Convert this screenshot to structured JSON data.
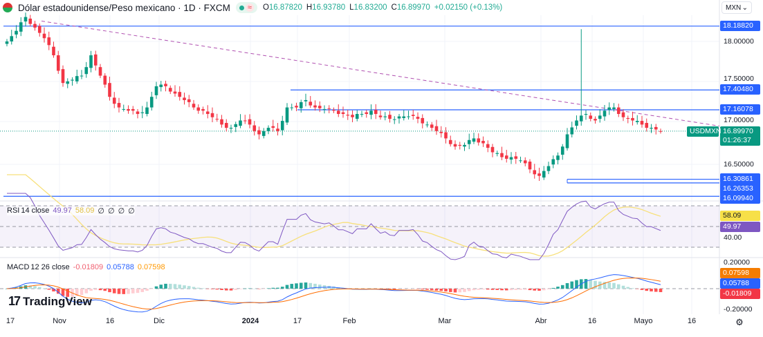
{
  "header": {
    "title": "Dólar estadounidense/Peso mexicano · 1D · FXCM",
    "open_label": "O",
    "open": "16.87820",
    "high_label": "H",
    "high": "16.93780",
    "low_label": "L",
    "low": "16.83200",
    "close_label": "C",
    "close": "16.89970",
    "change": "+0.02150 (+0.13%)",
    "market_status_icon": "market-open-dot",
    "wave_icon": "≈"
  },
  "currency_selector": {
    "value": "MXN",
    "chevron": "⌄"
  },
  "price_axis": {
    "ticks": [
      "18.00000",
      "17.50000",
      "17.00000",
      "16.50000"
    ],
    "tick_values": [
      18.0,
      17.5,
      17.0,
      16.5
    ],
    "levels": [
      {
        "label": "18.18820",
        "value": 18.1882
      },
      {
        "label": "17.40480",
        "value": 17.4048
      },
      {
        "label": "17.16078",
        "value": 17.16078
      },
      {
        "label": "16.30861",
        "value": 16.30861
      },
      {
        "label": "16.26353",
        "value": 16.26353
      },
      {
        "label": "16.09940",
        "value": 16.0994
      }
    ],
    "symbol_tag": "USDMXN",
    "last_price": "16.89970",
    "countdown": "01:26:37",
    "level_color": "#2962ff",
    "up_color": "#089981",
    "down_color": "#f23645"
  },
  "chart_data": {
    "type": "candlestick",
    "closes": [
      18.0,
      18.13,
      18.3,
      18.17,
      18.04,
      17.83,
      17.49,
      17.53,
      17.58,
      17.83,
      17.58,
      17.32,
      17.19,
      17.15,
      17.11,
      17.19,
      17.45,
      17.45,
      17.36,
      17.28,
      17.19,
      17.15,
      17.07,
      16.98,
      16.94,
      17.03,
      16.98,
      16.86,
      16.94,
      16.9,
      17.19,
      17.19,
      17.28,
      17.19,
      17.17,
      17.15,
      17.11,
      17.07,
      17.11,
      17.15,
      17.07,
      17.05,
      17.08,
      17.08,
      17.05,
      16.98,
      16.9,
      16.81,
      16.71,
      16.73,
      16.81,
      16.75,
      16.64,
      16.58,
      16.58,
      16.54,
      16.43,
      16.35,
      16.47,
      16.6,
      16.86,
      17.03,
      17.11,
      17.03,
      17.15,
      17.19,
      17.07,
      17.03,
      16.98,
      16.94,
      16.9
    ],
    "trendline": {
      "from": 18.25,
      "to": 17.03,
      "style": "dashed",
      "color": "#b04fb0"
    }
  },
  "rsi": {
    "legend": {
      "name": "RSI",
      "params": "14 close",
      "value": "49.97",
      "ma": "58.09",
      "extras": [
        "∅",
        "∅",
        "∅",
        "∅"
      ]
    },
    "axis": "40.00",
    "tag_ma": "58.09",
    "tag_rsi": "49.97",
    "rsi_color": "#7e57c2",
    "ma_color": "#f7e07a"
  },
  "macd": {
    "legend": {
      "name": "MACD",
      "params": "12 26 close",
      "hist": "-0.01809",
      "macd": "0.05788",
      "signal": "0.07598"
    },
    "axis": [
      "-0.20000",
      "0.20000"
    ],
    "tags": {
      "signal": "0.07598",
      "macd": "0.05788",
      "hist": "-0.01809"
    },
    "macd_color": "#2962ff",
    "signal_color": "#ff6d00"
  },
  "time_axis": [
    "17",
    "Nov",
    "16",
    "Dic",
    "2024",
    "17",
    "Feb",
    "Mar",
    "Abr",
    "16",
    "Mayo",
    "16"
  ],
  "logo": "TradingView",
  "settings_icon": "gear-icon"
}
